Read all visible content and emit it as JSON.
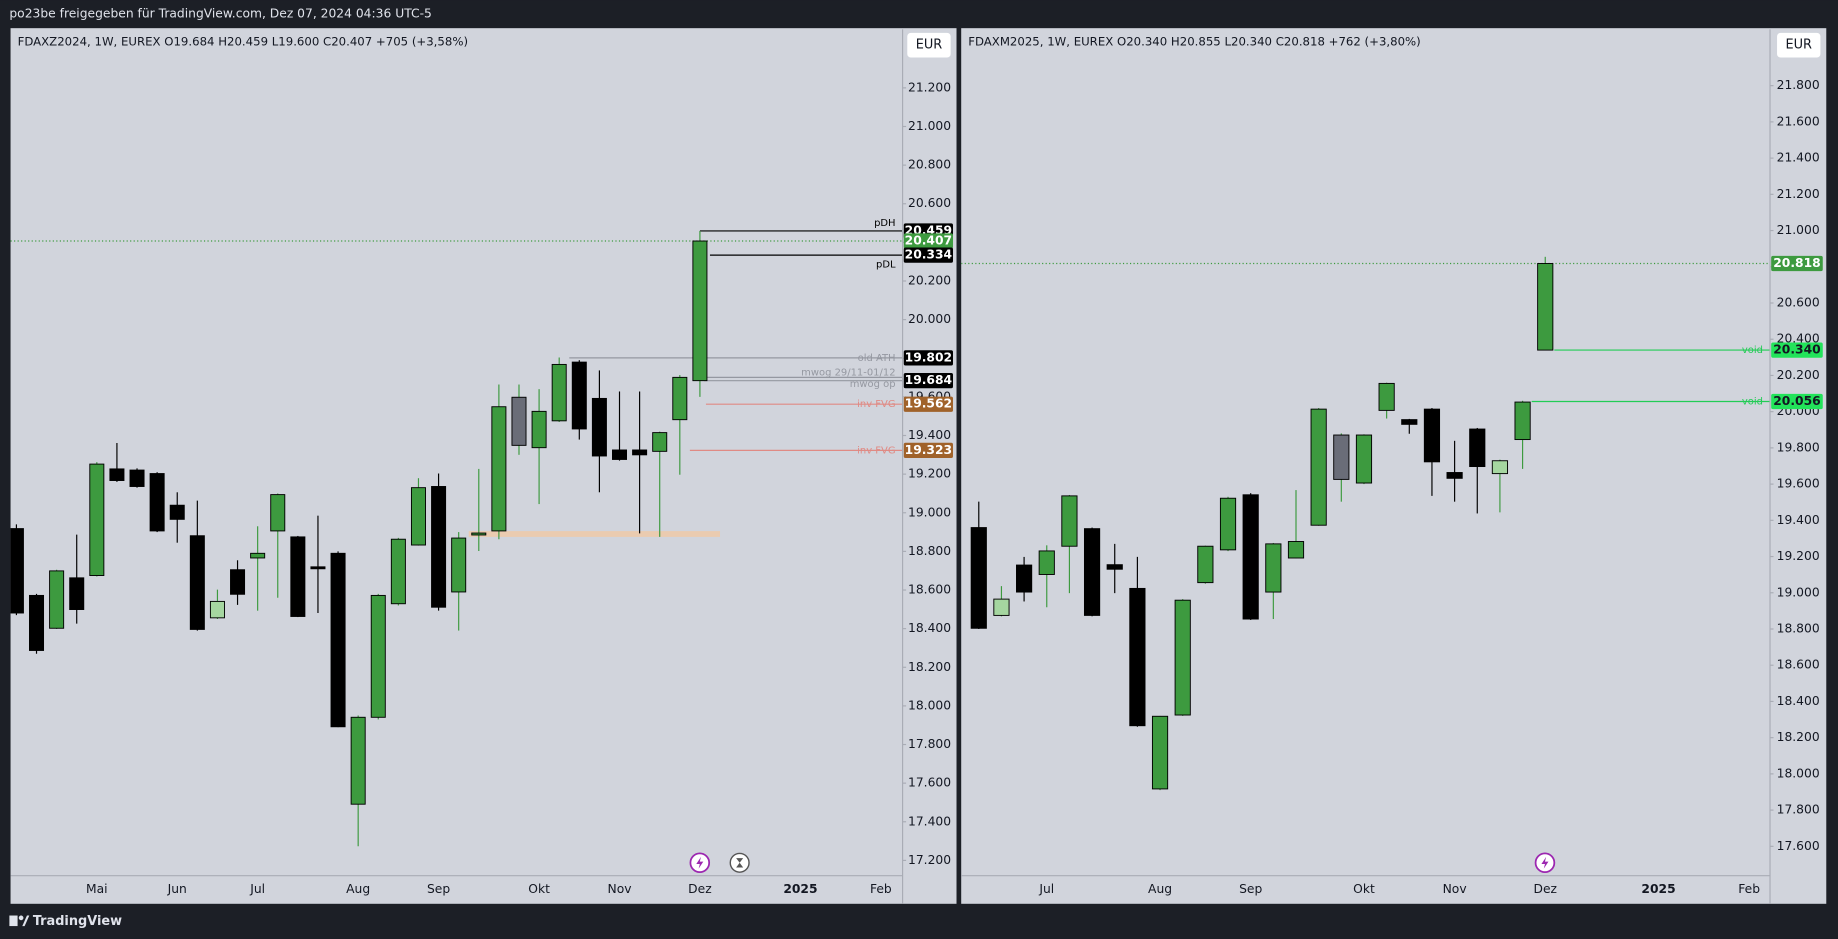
{
  "header": "po23be freigegeben für TradingView.com, Dez 07, 2024 04:36 UTC-5",
  "footer": "TradingView",
  "chart_data": [
    {
      "type": "candlestick",
      "legend": "FDAXZ2024, 1W, EUREX  O19.684  H20.459  L19.600  C20.407  +705 (+3,58%)",
      "currency": "EUR",
      "categories": [
        null,
        null,
        null,
        null,
        "Mai",
        null,
        null,
        null,
        "Jun",
        null,
        null,
        null,
        "Jul",
        null,
        null,
        null,
        null,
        "Aug",
        null,
        null,
        null,
        "Sep",
        null,
        null,
        null,
        null,
        "Okt",
        null,
        null,
        null,
        "Nov",
        null,
        null,
        null,
        "Dez",
        null,
        null,
        null,
        null,
        "2025",
        null,
        null,
        null,
        "Feb"
      ],
      "candles": [
        {
          "o": 18918,
          "h": 18940,
          "l": 18470,
          "c": 18481,
          "color": "#000000"
        },
        {
          "o": 18572,
          "h": 18580,
          "l": 18270,
          "c": 18287,
          "color": "#000000"
        },
        {
          "o": 18402,
          "h": 18705,
          "l": 18398,
          "c": 18699,
          "color": "#3d9a3f"
        },
        {
          "o": 18663,
          "h": 18887,
          "l": 18426,
          "c": 18499,
          "color": "#000000"
        },
        {
          "o": 18675,
          "h": 19262,
          "l": 18670,
          "c": 19252,
          "color": "#3d9a3f"
        },
        {
          "o": 19227,
          "h": 19361,
          "l": 19160,
          "c": 19167,
          "color": "#000000"
        },
        {
          "o": 19221,
          "h": 19230,
          "l": 19130,
          "c": 19136,
          "color": "#000000"
        },
        {
          "o": 19203,
          "h": 19210,
          "l": 18900,
          "c": 18906,
          "color": "#000000"
        },
        {
          "o": 19039,
          "h": 19106,
          "l": 18845,
          "c": 18966,
          "color": "#000000"
        },
        {
          "o": 18881,
          "h": 19063,
          "l": 18390,
          "c": 18396,
          "color": "#000000"
        },
        {
          "o": 18456,
          "h": 18602,
          "l": 18450,
          "c": 18541,
          "color": "#a5d6a0"
        },
        {
          "o": 18705,
          "h": 18754,
          "l": 18523,
          "c": 18578,
          "color": "#000000"
        },
        {
          "o": 18766,
          "h": 18930,
          "l": 18493,
          "c": 18790,
          "color": "#3d9a3f"
        },
        {
          "o": 18906,
          "h": 19100,
          "l": 18560,
          "c": 19094,
          "color": "#3d9a3f"
        },
        {
          "o": 18875,
          "h": 18880,
          "l": 18460,
          "c": 18463,
          "color": "#000000"
        },
        {
          "o": 18720,
          "h": 18985,
          "l": 18481,
          "c": 18710,
          "color": "#000000"
        },
        {
          "o": 18790,
          "h": 18800,
          "l": 17890,
          "c": 17892,
          "color": "#000000"
        },
        {
          "o": 17491,
          "h": 17950,
          "l": 17273,
          "c": 17941,
          "color": "#3d9a3f"
        },
        {
          "o": 17941,
          "h": 18580,
          "l": 17930,
          "c": 18572,
          "color": "#3d9a3f"
        },
        {
          "o": 18529,
          "h": 18870,
          "l": 18520,
          "c": 18863,
          "color": "#3d9a3f"
        },
        {
          "o": 18833,
          "h": 19179,
          "l": 18830,
          "c": 19130,
          "color": "#3d9a3f"
        },
        {
          "o": 19136,
          "h": 19203,
          "l": 18493,
          "c": 18511,
          "color": "#000000"
        },
        {
          "o": 18590,
          "h": 18900,
          "l": 18390,
          "c": 18869,
          "color": "#3d9a3f"
        },
        {
          "o": 18885,
          "h": 19227,
          "l": 18802,
          "c": 18895,
          "color": "#3d9a3f"
        },
        {
          "o": 18906,
          "h": 19664,
          "l": 18863,
          "c": 19549,
          "color": "#3d9a3f"
        },
        {
          "o": 19598,
          "h": 19664,
          "l": 19300,
          "c": 19349,
          "color": "#6a6d78"
        },
        {
          "o": 19337,
          "h": 19640,
          "l": 19045,
          "c": 19525,
          "color": "#3d9a3f"
        },
        {
          "o": 19476,
          "h": 19804,
          "l": 19470,
          "c": 19768,
          "color": "#3d9a3f"
        },
        {
          "o": 19780,
          "h": 19790,
          "l": 19379,
          "c": 19434,
          "color": "#000000"
        },
        {
          "o": 19592,
          "h": 19737,
          "l": 19106,
          "c": 19294,
          "color": "#000000"
        },
        {
          "o": 19325,
          "h": 19628,
          "l": 19270,
          "c": 19276,
          "color": "#000000"
        },
        {
          "o": 19325,
          "h": 19628,
          "l": 18893,
          "c": 19300,
          "color": "#000000"
        },
        {
          "o": 19318,
          "h": 19420,
          "l": 18875,
          "c": 19415,
          "color": "#3d9a3f"
        },
        {
          "o": 19482,
          "h": 19713,
          "l": 19197,
          "c": 19701,
          "color": "#3d9a3f"
        },
        {
          "o": 19684,
          "h": 20459,
          "l": 19600,
          "c": 20407,
          "color": "#3d9a3f"
        },
        null,
        null,
        null,
        null,
        null,
        null,
        null,
        null,
        null
      ],
      "ylim": [
        17121,
        21503
      ],
      "yticks": [
        {
          "value": 17200,
          "label": "17.200"
        },
        {
          "value": 17400,
          "label": "17.400"
        },
        {
          "value": 17600,
          "label": "17.600"
        },
        {
          "value": 17800,
          "label": "17.800"
        },
        {
          "value": 18000,
          "label": "18.000"
        },
        {
          "value": 18200,
          "label": "18.200"
        },
        {
          "value": 18400,
          "label": "18.400"
        },
        {
          "value": 18600,
          "label": "18.600"
        },
        {
          "value": 18800,
          "label": "18.800"
        },
        {
          "value": 19000,
          "label": "19.000"
        },
        {
          "value": 19200,
          "label": "19.200"
        },
        {
          "value": 19400,
          "label": "19.400"
        },
        {
          "value": 19600,
          "label": "19.600"
        },
        {
          "value": 19800,
          "label": "19.800"
        },
        {
          "value": 20000,
          "label": "20.000"
        },
        {
          "value": 20200,
          "label": "20.200"
        },
        {
          "value": 20400,
          "label": "20.400"
        },
        {
          "value": 20600,
          "label": "20.600"
        },
        {
          "value": 20800,
          "label": "20.800"
        },
        {
          "value": 21000,
          "label": "21.000"
        },
        {
          "value": 21200,
          "label": "21.200"
        }
      ],
      "grid": false,
      "levels": [
        {
          "value": 20459,
          "label": "pDH",
          "price_label": "20.459",
          "color": "#000000",
          "box": "#000000"
        },
        {
          "value": 20407,
          "price_label": "20.407",
          "color": "#3d9a3f",
          "box": "#3d9a3f",
          "dotted": true
        },
        {
          "value": 20334,
          "label": "pDL",
          "price_label": "20.334",
          "color": "#000000",
          "box": "#000000"
        },
        {
          "value": 19802,
          "label": "old ATH",
          "price_label": "19.802",
          "color": "#9598a1",
          "box": "#000000"
        },
        {
          "value": 19701,
          "label": "mwog 29/11-01/12",
          "color": "#9598a1"
        },
        {
          "value": 19684,
          "label": "mwog op",
          "price_label": "19.684",
          "color": "#9598a1",
          "box": "#000000"
        },
        {
          "value": 19562,
          "label": "inv FVG",
          "price_label": "19.562",
          "color": "#e08a84",
          "box": "#a0622a"
        },
        {
          "value": 19323,
          "label": "inv FVG",
          "price_label": "19.323",
          "color": "#e08a84",
          "box": "#a0622a"
        }
      ],
      "zones": [
        {
          "from": 18875,
          "to": 18905,
          "color": "#efc9a8"
        }
      ]
    },
    {
      "type": "candlestick",
      "legend": "FDAXM2025, 1W, EUREX  O20.340  H20.855  L20.340  C20.818  +762 (+3,80%)",
      "currency": "EUR",
      "categories": [
        null,
        null,
        null,
        "Jul",
        null,
        null,
        null,
        null,
        "Aug",
        null,
        null,
        null,
        "Sep",
        null,
        null,
        null,
        null,
        "Okt",
        null,
        null,
        null,
        "Nov",
        null,
        null,
        null,
        "Dez",
        null,
        null,
        null,
        null,
        "2025",
        null,
        null,
        null,
        "Feb"
      ],
      "candles": [
        {
          "o": 19360,
          "h": 19503,
          "l": 18800,
          "c": 18804,
          "color": "#000000"
        },
        {
          "o": 18875,
          "h": 19037,
          "l": 18870,
          "c": 18965,
          "color": "#a5d6a0"
        },
        {
          "o": 19153,
          "h": 19198,
          "l": 18952,
          "c": 19004,
          "color": "#000000"
        },
        {
          "o": 19101,
          "h": 19262,
          "l": 18920,
          "c": 19231,
          "color": "#3d9a3f"
        },
        {
          "o": 19257,
          "h": 19540,
          "l": 18998,
          "c": 19535,
          "color": "#3d9a3f"
        },
        {
          "o": 19354,
          "h": 19360,
          "l": 18870,
          "c": 18875,
          "color": "#000000"
        },
        {
          "o": 19155,
          "h": 19270,
          "l": 18998,
          "c": 19130,
          "color": "#000000"
        },
        {
          "o": 19024,
          "h": 19198,
          "l": 18260,
          "c": 18266,
          "color": "#000000"
        },
        {
          "o": 17917,
          "h": 18320,
          "l": 17910,
          "c": 18318,
          "color": "#3d9a3f"
        },
        {
          "o": 18325,
          "h": 18965,
          "l": 18320,
          "c": 18959,
          "color": "#3d9a3f"
        },
        {
          "o": 19056,
          "h": 19260,
          "l": 19050,
          "c": 19257,
          "color": "#3d9a3f"
        },
        {
          "o": 19237,
          "h": 19530,
          "l": 19230,
          "c": 19522,
          "color": "#3d9a3f"
        },
        {
          "o": 19541,
          "h": 19550,
          "l": 18850,
          "c": 18855,
          "color": "#000000"
        },
        {
          "o": 19004,
          "h": 19275,
          "l": 18855,
          "c": 19270,
          "color": "#3d9a3f"
        },
        {
          "o": 19192,
          "h": 19567,
          "l": 19190,
          "c": 19283,
          "color": "#3d9a3f"
        },
        {
          "o": 19373,
          "h": 20020,
          "l": 19370,
          "c": 20014,
          "color": "#3d9a3f"
        },
        {
          "o": 19871,
          "h": 19880,
          "l": 19503,
          "c": 19626,
          "color": "#6a6d78"
        },
        {
          "o": 19606,
          "h": 19875,
          "l": 19600,
          "c": 19871,
          "color": "#3d9a3f"
        },
        {
          "o": 20007,
          "h": 20160,
          "l": 19962,
          "c": 20156,
          "color": "#3d9a3f"
        },
        {
          "o": 19956,
          "h": 19960,
          "l": 19878,
          "c": 19930,
          "color": "#000000"
        },
        {
          "o": 20014,
          "h": 20020,
          "l": 19535,
          "c": 19723,
          "color": "#000000"
        },
        {
          "o": 19664,
          "h": 19839,
          "l": 19503,
          "c": 19632,
          "color": "#000000"
        },
        {
          "o": 19904,
          "h": 19910,
          "l": 19438,
          "c": 19697,
          "color": "#000000"
        },
        {
          "o": 19658,
          "h": 19735,
          "l": 19444,
          "c": 19729,
          "color": "#a5d6a0"
        },
        {
          "o": 19846,
          "h": 20060,
          "l": 19684,
          "c": 20053,
          "color": "#3d9a3f"
        },
        {
          "o": 20340,
          "h": 20855,
          "l": 20340,
          "c": 20818,
          "color": "#3d9a3f"
        },
        null,
        null,
        null,
        null,
        null,
        null,
        null,
        null,
        null
      ],
      "ylim": [
        17438,
        22111
      ],
      "yticks": [
        {
          "value": 17600,
          "label": "17.600"
        },
        {
          "value": 17800,
          "label": "17.800"
        },
        {
          "value": 18000,
          "label": "18.000"
        },
        {
          "value": 18200,
          "label": "18.200"
        },
        {
          "value": 18400,
          "label": "18.400"
        },
        {
          "value": 18600,
          "label": "18.600"
        },
        {
          "value": 18800,
          "label": "18.800"
        },
        {
          "value": 19000,
          "label": "19.000"
        },
        {
          "value": 19200,
          "label": "19.200"
        },
        {
          "value": 19400,
          "label": "19.400"
        },
        {
          "value": 19600,
          "label": "19.600"
        },
        {
          "value": 19800,
          "label": "19.800"
        },
        {
          "value": 20000,
          "label": "20.000"
        },
        {
          "value": 20200,
          "label": "20.200"
        },
        {
          "value": 20400,
          "label": "20.400"
        },
        {
          "value": 20600,
          "label": "20.600"
        },
        {
          "value": 20800,
          "label": "20.800"
        },
        {
          "value": 21000,
          "label": "21.000"
        },
        {
          "value": 21200,
          "label": "21.200"
        },
        {
          "value": 21400,
          "label": "21.400"
        },
        {
          "value": 21600,
          "label": "21.600"
        },
        {
          "value": 21800,
          "label": "21.800"
        }
      ],
      "grid": false,
      "levels": [
        {
          "value": 20818,
          "price_label": "20.818",
          "color": "#3d9a3f",
          "box": "#3d9a3f",
          "dotted": true
        },
        {
          "value": 20340,
          "label": "void",
          "price_label": "20.340",
          "color": "#22cc55",
          "box": "#22e35a"
        },
        {
          "value": 20056,
          "label": "void",
          "price_label": "20.056",
          "color": "#22cc55",
          "box": "#22e35a"
        }
      ],
      "zones": []
    }
  ]
}
